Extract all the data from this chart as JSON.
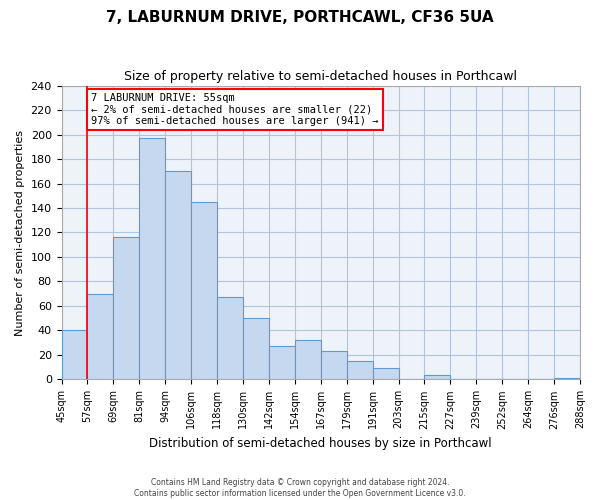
{
  "title": "7, LABURNUM DRIVE, PORTHCAWL, CF36 5UA",
  "subtitle": "Size of property relative to semi-detached houses in Porthcawl",
  "xlabel": "Distribution of semi-detached houses by size in Porthcawl",
  "ylabel": "Number of semi-detached properties",
  "bin_labels": [
    "45sqm",
    "57sqm",
    "69sqm",
    "81sqm",
    "94sqm",
    "106sqm",
    "118sqm",
    "130sqm",
    "142sqm",
    "154sqm",
    "167sqm",
    "179sqm",
    "191sqm",
    "203sqm",
    "215sqm",
    "227sqm",
    "239sqm",
    "252sqm",
    "264sqm",
    "276sqm",
    "288sqm"
  ],
  "bin_values": [
    40,
    70,
    116,
    197,
    170,
    145,
    67,
    50,
    27,
    32,
    23,
    15,
    9,
    0,
    4,
    0,
    0,
    0,
    0,
    1
  ],
  "bar_color": "#c5d8f0",
  "bar_edge_color": "#5b9bd5",
  "grid_color": "#b0c4de",
  "background_color": "#eef3fa",
  "annotation_title": "7 LABURNUM DRIVE: 55sqm",
  "annotation_line1": "← 2% of semi-detached houses are smaller (22)",
  "annotation_line2": "97% of semi-detached houses are larger (941) →",
  "red_line_x": 1,
  "ylim": [
    0,
    240
  ],
  "yticks": [
    0,
    20,
    40,
    60,
    80,
    100,
    120,
    140,
    160,
    180,
    200,
    220,
    240
  ],
  "footer_line1": "Contains HM Land Registry data © Crown copyright and database right 2024.",
  "footer_line2": "Contains public sector information licensed under the Open Government Licence v3.0."
}
